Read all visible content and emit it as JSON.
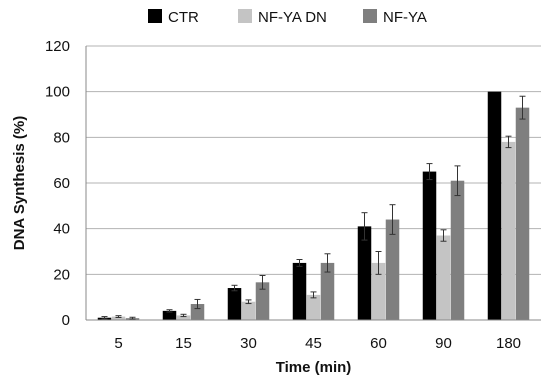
{
  "chart_data": {
    "type": "bar",
    "categories": [
      "5",
      "15",
      "30",
      "45",
      "60",
      "90",
      "180"
    ],
    "series": [
      {
        "name": "CTR",
        "color": "#000000",
        "values": [
          1,
          4,
          14,
          25,
          41,
          65,
          100
        ],
        "errors": [
          0.5,
          0.5,
          1.2,
          1.5,
          6,
          3.5,
          0
        ]
      },
      {
        "name": "NF-YA DN",
        "color": "#c4c4c4",
        "values": [
          1.5,
          2,
          8,
          11,
          25,
          37,
          78
        ],
        "errors": [
          0.4,
          0.5,
          0.8,
          1.3,
          5,
          2.5,
          2.5
        ]
      },
      {
        "name": "NF-YA",
        "color": "#7f7f7f",
        "values": [
          0.8,
          7,
          16.5,
          25,
          44,
          61,
          93
        ],
        "errors": [
          0.4,
          2,
          3,
          4,
          6.5,
          6.5,
          5
        ]
      }
    ],
    "xlabel": "Time (min)",
    "ylabel": "DNA Synthesis (%)",
    "ylim": [
      0,
      120
    ],
    "yticks": [
      "0",
      "20",
      "40",
      "60",
      "80",
      "100",
      "120"
    ],
    "grid": true,
    "legend_position": "top"
  }
}
